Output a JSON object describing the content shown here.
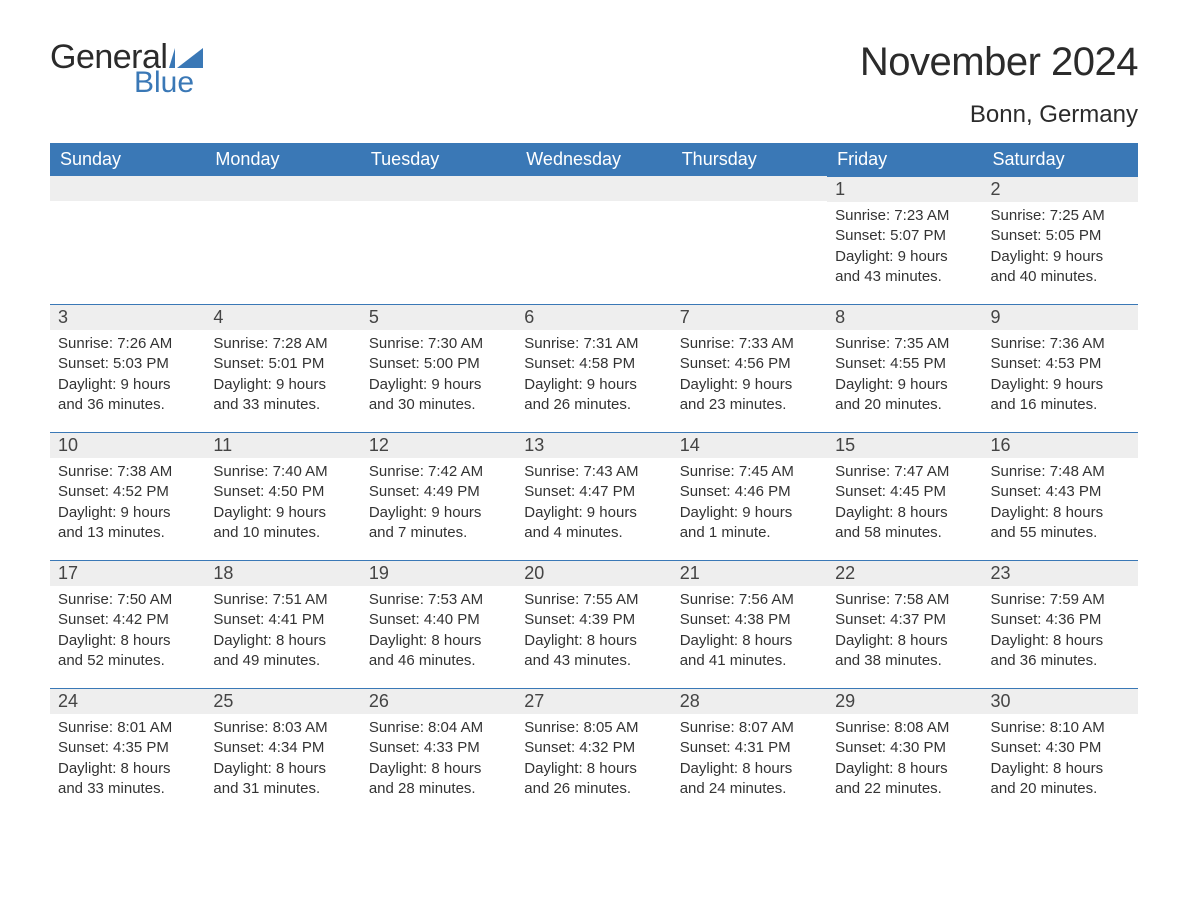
{
  "logo": {
    "word1": "General",
    "word2": "Blue"
  },
  "title": "November 2024",
  "location": "Bonn, Germany",
  "colors": {
    "header_bg": "#3a78b6",
    "header_text": "#ffffff",
    "daynum_bg": "#eeeeee",
    "daynum_border": "#3a78b6",
    "body_text": "#333333",
    "page_bg": "#ffffff"
  },
  "dayNames": [
    "Sunday",
    "Monday",
    "Tuesday",
    "Wednesday",
    "Thursday",
    "Friday",
    "Saturday"
  ],
  "startOffset": 5,
  "days": [
    {
      "n": 1,
      "sunrise": "7:23 AM",
      "sunset": "5:07 PM",
      "daylight": "9 hours and 43 minutes."
    },
    {
      "n": 2,
      "sunrise": "7:25 AM",
      "sunset": "5:05 PM",
      "daylight": "9 hours and 40 minutes."
    },
    {
      "n": 3,
      "sunrise": "7:26 AM",
      "sunset": "5:03 PM",
      "daylight": "9 hours and 36 minutes."
    },
    {
      "n": 4,
      "sunrise": "7:28 AM",
      "sunset": "5:01 PM",
      "daylight": "9 hours and 33 minutes."
    },
    {
      "n": 5,
      "sunrise": "7:30 AM",
      "sunset": "5:00 PM",
      "daylight": "9 hours and 30 minutes."
    },
    {
      "n": 6,
      "sunrise": "7:31 AM",
      "sunset": "4:58 PM",
      "daylight": "9 hours and 26 minutes."
    },
    {
      "n": 7,
      "sunrise": "7:33 AM",
      "sunset": "4:56 PM",
      "daylight": "9 hours and 23 minutes."
    },
    {
      "n": 8,
      "sunrise": "7:35 AM",
      "sunset": "4:55 PM",
      "daylight": "9 hours and 20 minutes."
    },
    {
      "n": 9,
      "sunrise": "7:36 AM",
      "sunset": "4:53 PM",
      "daylight": "9 hours and 16 minutes."
    },
    {
      "n": 10,
      "sunrise": "7:38 AM",
      "sunset": "4:52 PM",
      "daylight": "9 hours and 13 minutes."
    },
    {
      "n": 11,
      "sunrise": "7:40 AM",
      "sunset": "4:50 PM",
      "daylight": "9 hours and 10 minutes."
    },
    {
      "n": 12,
      "sunrise": "7:42 AM",
      "sunset": "4:49 PM",
      "daylight": "9 hours and 7 minutes."
    },
    {
      "n": 13,
      "sunrise": "7:43 AM",
      "sunset": "4:47 PM",
      "daylight": "9 hours and 4 minutes."
    },
    {
      "n": 14,
      "sunrise": "7:45 AM",
      "sunset": "4:46 PM",
      "daylight": "9 hours and 1 minute."
    },
    {
      "n": 15,
      "sunrise": "7:47 AM",
      "sunset": "4:45 PM",
      "daylight": "8 hours and 58 minutes."
    },
    {
      "n": 16,
      "sunrise": "7:48 AM",
      "sunset": "4:43 PM",
      "daylight": "8 hours and 55 minutes."
    },
    {
      "n": 17,
      "sunrise": "7:50 AM",
      "sunset": "4:42 PM",
      "daylight": "8 hours and 52 minutes."
    },
    {
      "n": 18,
      "sunrise": "7:51 AM",
      "sunset": "4:41 PM",
      "daylight": "8 hours and 49 minutes."
    },
    {
      "n": 19,
      "sunrise": "7:53 AM",
      "sunset": "4:40 PM",
      "daylight": "8 hours and 46 minutes."
    },
    {
      "n": 20,
      "sunrise": "7:55 AM",
      "sunset": "4:39 PM",
      "daylight": "8 hours and 43 minutes."
    },
    {
      "n": 21,
      "sunrise": "7:56 AM",
      "sunset": "4:38 PM",
      "daylight": "8 hours and 41 minutes."
    },
    {
      "n": 22,
      "sunrise": "7:58 AM",
      "sunset": "4:37 PM",
      "daylight": "8 hours and 38 minutes."
    },
    {
      "n": 23,
      "sunrise": "7:59 AM",
      "sunset": "4:36 PM",
      "daylight": "8 hours and 36 minutes."
    },
    {
      "n": 24,
      "sunrise": "8:01 AM",
      "sunset": "4:35 PM",
      "daylight": "8 hours and 33 minutes."
    },
    {
      "n": 25,
      "sunrise": "8:03 AM",
      "sunset": "4:34 PM",
      "daylight": "8 hours and 31 minutes."
    },
    {
      "n": 26,
      "sunrise": "8:04 AM",
      "sunset": "4:33 PM",
      "daylight": "8 hours and 28 minutes."
    },
    {
      "n": 27,
      "sunrise": "8:05 AM",
      "sunset": "4:32 PM",
      "daylight": "8 hours and 26 minutes."
    },
    {
      "n": 28,
      "sunrise": "8:07 AM",
      "sunset": "4:31 PM",
      "daylight": "8 hours and 24 minutes."
    },
    {
      "n": 29,
      "sunrise": "8:08 AM",
      "sunset": "4:30 PM",
      "daylight": "8 hours and 22 minutes."
    },
    {
      "n": 30,
      "sunrise": "8:10 AM",
      "sunset": "4:30 PM",
      "daylight": "8 hours and 20 minutes."
    }
  ],
  "labels": {
    "sunrise": "Sunrise: ",
    "sunset": "Sunset: ",
    "daylight": "Daylight: "
  }
}
